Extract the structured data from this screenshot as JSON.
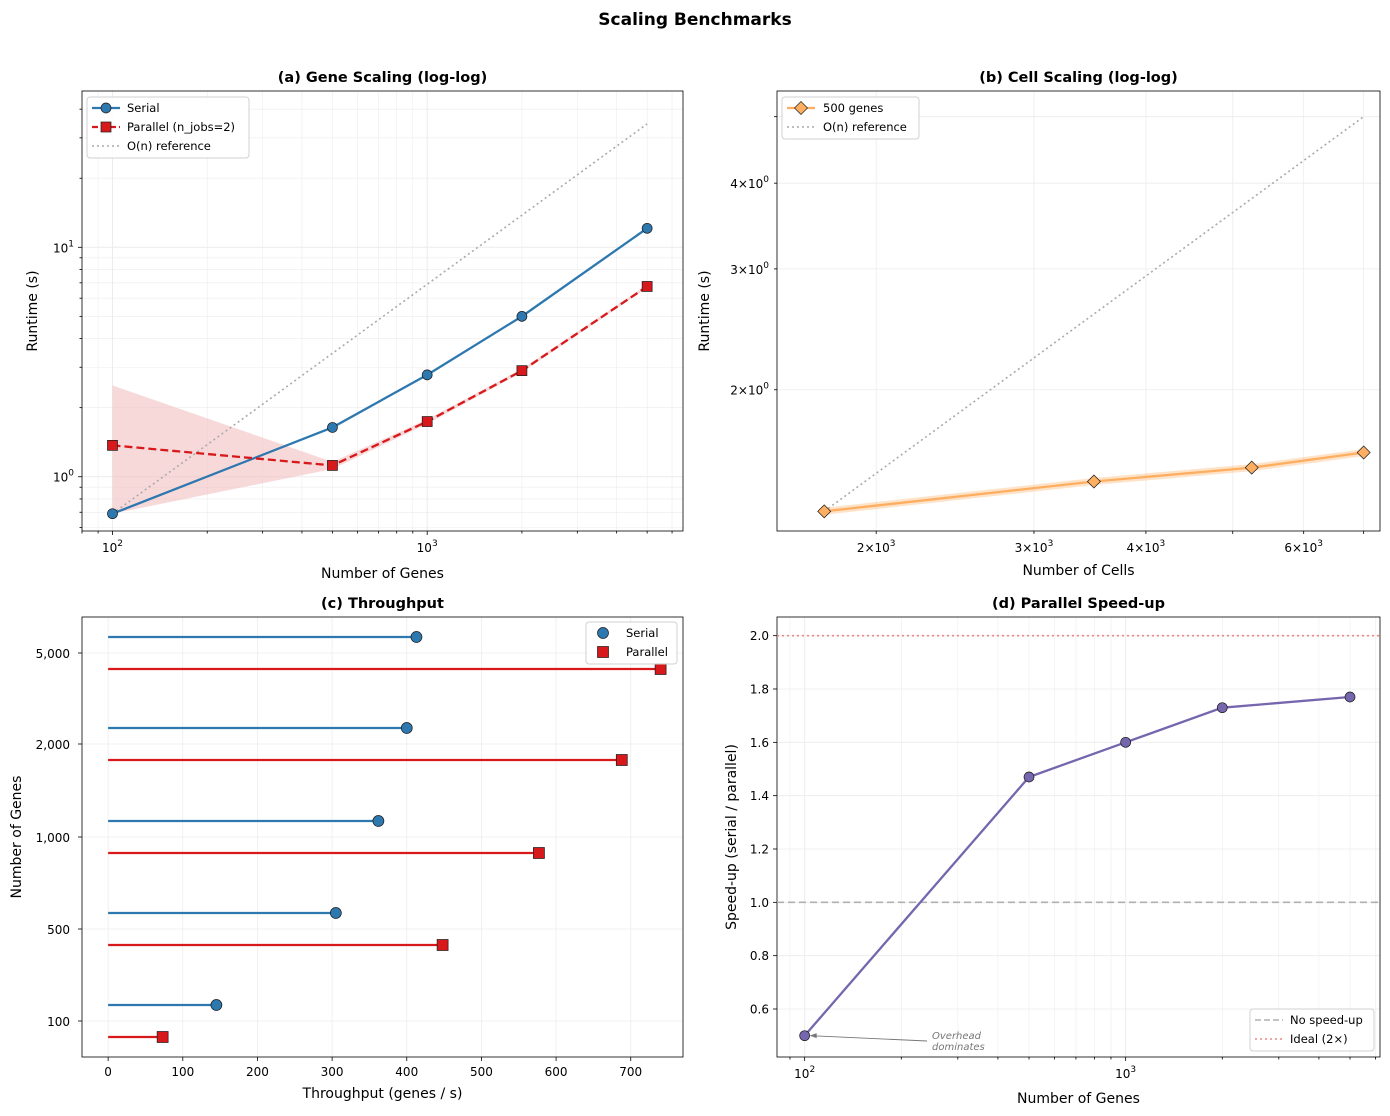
{
  "suptitle": "Scaling Benchmarks",
  "colors": {
    "serial": "#2e78b0",
    "parallel": "#d7191c",
    "cells": "#fdae61",
    "speedup": "#7566ae",
    "reference": "#aaaaaa",
    "ideal": "#e88a86",
    "band": "#f4c0c2"
  },
  "chart_data": [
    {
      "panel": "a",
      "type": "line",
      "title": "(a)  Gene Scaling (log-log)",
      "xlabel": "Number of Genes",
      "ylabel": "Runtime (s)",
      "xscale": "log",
      "yscale": "log",
      "xlim": [
        80,
        6500
      ],
      "ylim": [
        0.58,
        48
      ],
      "grid": true,
      "legend_loc": "upper-left",
      "x": [
        100,
        500,
        1000,
        2000,
        5000
      ],
      "series": [
        {
          "name": "Serial",
          "values": [
            0.69,
            1.64,
            2.78,
            5.0,
            12.1
          ]
        },
        {
          "name": "Parallel (n_jobs=2)",
          "values": [
            1.37,
            1.12,
            1.74,
            2.9,
            6.75
          ],
          "band_low": [
            0.69,
            1.08,
            1.7,
            2.85,
            6.65
          ],
          "band_high": [
            2.5,
            1.16,
            1.78,
            2.95,
            6.85
          ]
        },
        {
          "name": "O(n) reference",
          "x": [
            100,
            5000
          ],
          "values": [
            0.69,
            34.5
          ]
        }
      ],
      "xticks": [
        {
          "v": 100,
          "base": "10",
          "exp": "2"
        },
        {
          "v": 1000,
          "base": "10",
          "exp": "3"
        }
      ],
      "yticks": [
        {
          "v": 1,
          "base": "10",
          "exp": "0"
        },
        {
          "v": 10,
          "base": "10",
          "exp": "1"
        }
      ]
    },
    {
      "panel": "b",
      "type": "line",
      "title": "(b)  Cell Scaling (log-log)",
      "xlabel": "Number of Cells",
      "ylabel": "Runtime (s)",
      "xscale": "log",
      "yscale": "log",
      "xlim": [
        1550,
        7300
      ],
      "ylim": [
        1.245,
        5.45
      ],
      "grid": true,
      "legend_loc": "upper-left",
      "x": [
        1750,
        3500,
        5250,
        7000
      ],
      "series": [
        {
          "name": "500 genes",
          "values": [
            1.33,
            1.47,
            1.54,
            1.62
          ]
        },
        {
          "name": "O(n) reference",
          "x": [
            1750,
            7000
          ],
          "values": [
            1.33,
            5.0
          ]
        }
      ],
      "xticks": [
        {
          "v": 2000,
          "coef": "2",
          "base": "10",
          "exp": "3"
        },
        {
          "v": 3000,
          "coef": "3",
          "base": "10",
          "exp": "3"
        },
        {
          "v": 4000,
          "coef": "4",
          "base": "10",
          "exp": "3"
        },
        {
          "v": 6000,
          "coef": "6",
          "base": "10",
          "exp": "3"
        }
      ],
      "yticks": [
        {
          "v": 2,
          "coef": "2",
          "base": "10",
          "exp": "0"
        },
        {
          "v": 3,
          "coef": "3",
          "base": "10",
          "exp": "0"
        },
        {
          "v": 4,
          "coef": "4",
          "base": "10",
          "exp": "0"
        }
      ]
    },
    {
      "panel": "c",
      "type": "bar",
      "title": "(c)  Throughput",
      "xlabel": "Throughput (genes / s)",
      "ylabel": "Number of Genes",
      "orientation": "horizontal-lollipop",
      "xlim": [
        -35,
        770
      ],
      "grid": true,
      "legend_loc": "upper-right",
      "categories": [
        "100",
        "500",
        "1,000",
        "2,000",
        "5,000"
      ],
      "series": [
        {
          "name": "Serial",
          "values": [
            145,
            305,
            362,
            400,
            413
          ]
        },
        {
          "name": "Parallel",
          "values": [
            73,
            448,
            577,
            688,
            740
          ]
        }
      ],
      "xticks": [
        "0",
        "100",
        "200",
        "300",
        "400",
        "500",
        "600",
        "700"
      ]
    },
    {
      "panel": "d",
      "type": "line",
      "title": "(d)  Parallel Speed-up",
      "xlabel": "Number of Genes",
      "ylabel": "Speed-up (serial / parallel)",
      "xscale": "log",
      "xlim": [
        82,
        6200
      ],
      "ylim": [
        0.42,
        2.07
      ],
      "grid": true,
      "legend_loc": "lower-right",
      "x": [
        100,
        500,
        1000,
        2000,
        5000
      ],
      "series": [
        {
          "values": [
            0.5,
            1.47,
            1.6,
            1.73,
            1.77
          ]
        }
      ],
      "hlines": [
        {
          "name": "No speed-up",
          "y": 1.0
        },
        {
          "name": "Ideal (2×)",
          "y": 2.0
        }
      ],
      "annotation": {
        "text_line1": "Overhead",
        "text_line2": "dominates",
        "x": 100,
        "y": 0.5
      },
      "xticks": [
        {
          "v": 100,
          "base": "10",
          "exp": "2"
        },
        {
          "v": 1000,
          "base": "10",
          "exp": "3"
        }
      ],
      "yticks": [
        "0.6",
        "0.8",
        "1.0",
        "1.2",
        "1.4",
        "1.6",
        "1.8",
        "2.0"
      ]
    }
  ]
}
